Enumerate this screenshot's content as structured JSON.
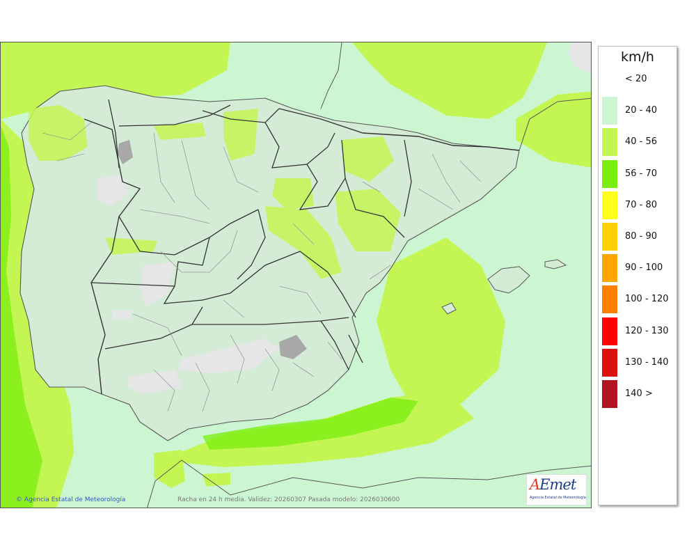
{
  "legend": {
    "unit": "km/h",
    "bins": [
      {
        "label": "< 20",
        "color": ""
      },
      {
        "label": "20 - 40",
        "color": "#ccf6d2"
      },
      {
        "label": "40 - 56",
        "color": "#c4f653"
      },
      {
        "label": "56 - 70",
        "color": "#7aee0d"
      },
      {
        "label": "70 - 80",
        "color": "#ffff1a"
      },
      {
        "label": "80 - 90",
        "color": "#ffd000"
      },
      {
        "label": "90 - 100",
        "color": "#ffa500"
      },
      {
        "label": "100 - 120",
        "color": "#ff7f00"
      },
      {
        "label": "120 - 130",
        "color": "#ff0000"
      },
      {
        "label": "130 - 140",
        "color": "#dd1010"
      },
      {
        "label": "140 >",
        "color": "#b01520"
      }
    ]
  },
  "map": {
    "region": "Iberian Peninsula and Balearic Islands",
    "field_colors": {
      "sea_20_40": "#ccf6d2",
      "band_40_56": "#c4f653",
      "band_56_70": "#7aee0d",
      "land": "#d4ecd6",
      "below_20": "#e6e6e6",
      "border": "#333333",
      "province_border": "#999999"
    }
  },
  "footer": {
    "credit": "Agencia Estatal de Meteorología",
    "caption": "Racha en 24 h media. Validez: 20260307 Pasada modelo: 2026030600"
  },
  "logo": {
    "wordmark": "AEmet",
    "subtitle": "Agencia Estatal de Meteorología"
  }
}
